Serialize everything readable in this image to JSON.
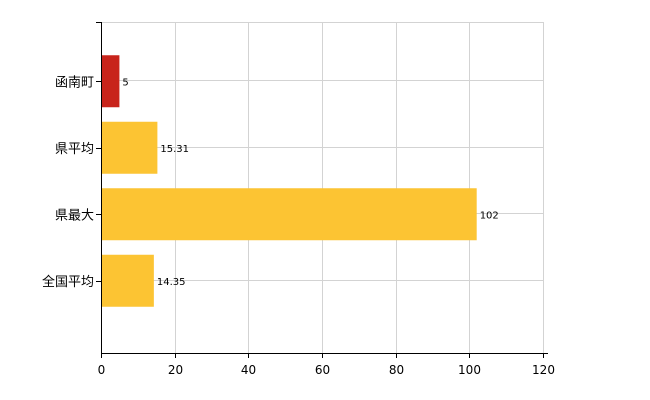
{
  "chart_data": {
    "type": "bar",
    "orientation": "horizontal",
    "categories": [
      "函南町",
      "県平均",
      "県最大",
      "全国平均"
    ],
    "values": [
      5,
      15.31,
      102,
      14.35
    ],
    "value_labels": [
      "5",
      "15.31",
      "102",
      "14.35"
    ],
    "bar_colors": [
      "#c8241b",
      "#fcc433",
      "#fcc433",
      "#fcc433"
    ],
    "xlim": [
      0,
      120
    ],
    "xticks": [
      0,
      20,
      40,
      60,
      80,
      100,
      120
    ],
    "title": "",
    "xlabel": "",
    "ylabel": "",
    "grid": true
  },
  "colors": {
    "highlight": "#c8241b",
    "default_bar": "#fcc433",
    "grid": "#d3d3d3"
  }
}
